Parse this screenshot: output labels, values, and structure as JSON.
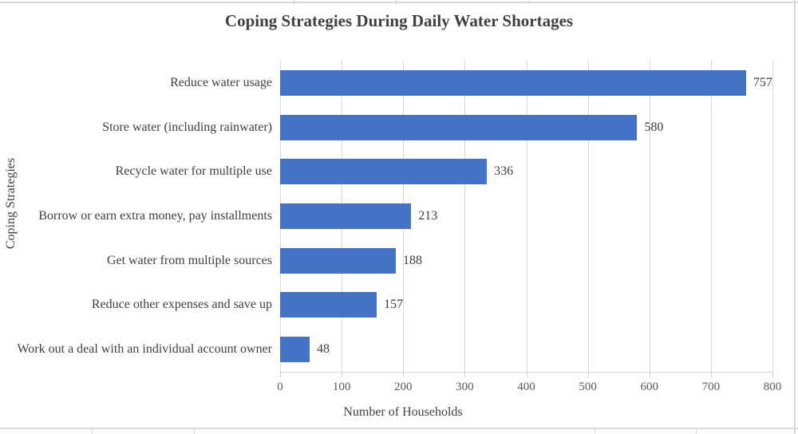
{
  "chart_data": {
    "type": "bar",
    "orientation": "horizontal",
    "title": "Coping Strategies During Daily Water Shortages",
    "categories": [
      "Reduce water usage",
      "Store water (including rainwater)",
      "Recycle water for multiple use",
      "Borrow or earn extra money, pay installments",
      "Get water from multiple sources",
      "Reduce other expenses and save up",
      "Work out a deal with an individual account owner"
    ],
    "values": [
      757,
      580,
      336,
      213,
      188,
      157,
      48
    ],
    "data_labels": [
      "757",
      "580",
      "336",
      "213",
      "188",
      "157",
      "48"
    ],
    "xlabel": "Number of Households",
    "ylabel": "Coping Strategies",
    "xlim": [
      0,
      800
    ],
    "xticks": [
      "0",
      "100",
      "200",
      "300",
      "400",
      "500",
      "600",
      "700",
      "800"
    ],
    "grid": "vertical-only",
    "legend": "none",
    "colors": {
      "bar": "#4472c4",
      "gridline": "#d9d9d9",
      "tick_text": "#595959",
      "label_text": "#404040",
      "title_text": "#404040",
      "sheet_line": "#dadada"
    }
  }
}
